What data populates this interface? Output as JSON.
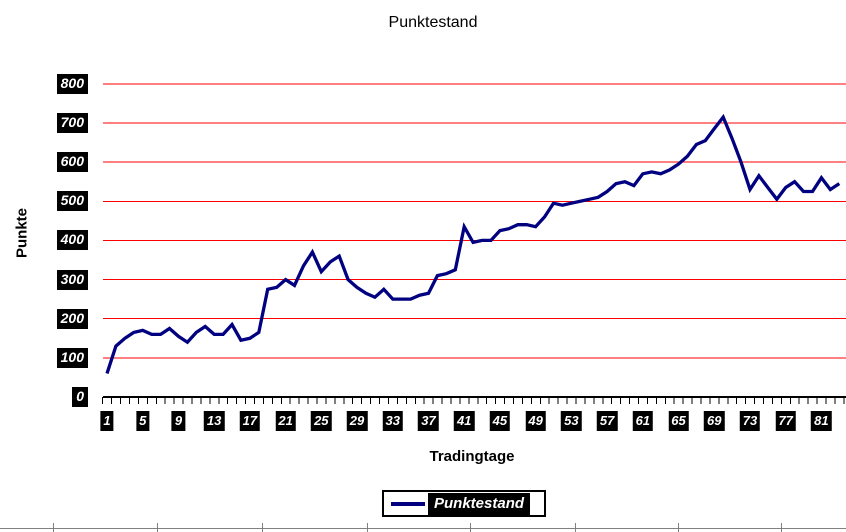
{
  "chart_data": {
    "type": "line",
    "title": "Punktestand",
    "xlabel": "Tradingtage",
    "ylabel": "Punkte",
    "legend": {
      "position": "bottom-center",
      "entries": [
        "Punktestand"
      ]
    },
    "x_range": [
      1,
      83
    ],
    "x_tick_labels": [
      "1",
      "5",
      "9",
      "13",
      "17",
      "21",
      "25",
      "29",
      "33",
      "37",
      "41",
      "45",
      "49",
      "53",
      "57",
      "61",
      "65",
      "69",
      "73",
      "77",
      "81"
    ],
    "y_tick_labels": [
      "0",
      "100",
      "200",
      "300",
      "400",
      "500",
      "600",
      "700",
      "800"
    ],
    "ylim": [
      0,
      800
    ],
    "grid": {
      "horizontal": true,
      "color": "#ff0000"
    },
    "styles": {
      "series_color": "#000080",
      "axis_color": "#000000",
      "tick_label_bg": "#000000",
      "tick_label_fg": "#ffffff",
      "cell_border_color": "#808080",
      "background": "#ffffff"
    },
    "series": [
      {
        "name": "Punktestand",
        "color": "#000080",
        "values": [
          60,
          130,
          150,
          165,
          170,
          160,
          160,
          175,
          155,
          140,
          165,
          180,
          160,
          160,
          185,
          145,
          150,
          165,
          275,
          280,
          300,
          285,
          335,
          370,
          320,
          345,
          360,
          300,
          280,
          265,
          255,
          275,
          250,
          250,
          250,
          260,
          265,
          310,
          315,
          325,
          435,
          395,
          400,
          400,
          425,
          430,
          440,
          440,
          435,
          460,
          495,
          490,
          495,
          500,
          505,
          510,
          525,
          545,
          550,
          540,
          570,
          575,
          570,
          580,
          595,
          615,
          645,
          655,
          685,
          715,
          660,
          600,
          530,
          565,
          535,
          505,
          535,
          550,
          525,
          525,
          560,
          530,
          545
        ]
      }
    ]
  }
}
